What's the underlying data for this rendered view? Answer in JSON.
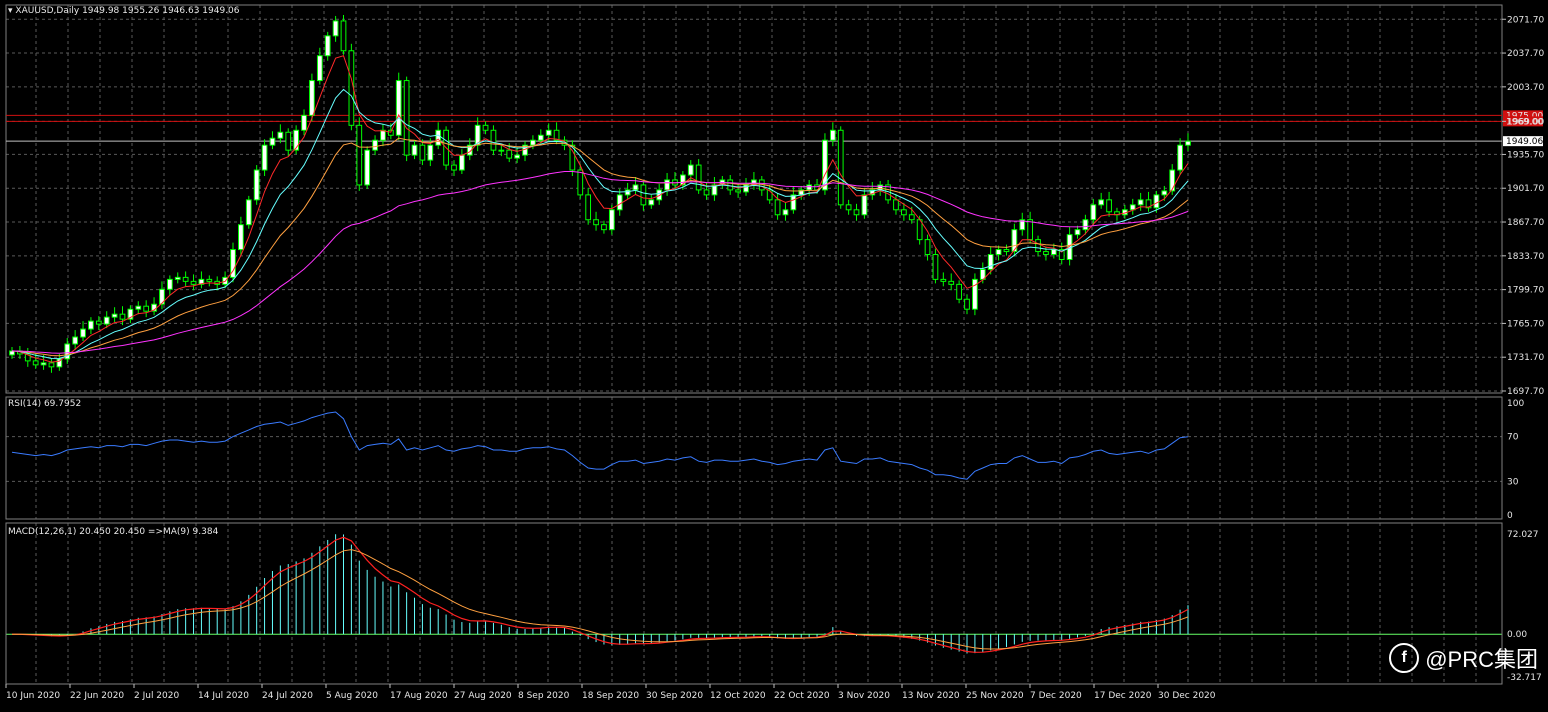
{
  "window": {
    "symbol_caption": "XAUUSD,Daily",
    "ohlc": "1949.98 1955.26 1946.63 1949.06"
  },
  "colors": {
    "bg": "#000000",
    "grid": "#5a5a5a",
    "bull": "#00ff00",
    "bull_fill": "#ffffff",
    "bear": "#00ff00",
    "bear_fill": "#000000",
    "ma_fast": "#ff2a2a",
    "ma_mid": "#66ffff",
    "ma_slow": "#ffa040",
    "ma_long": "#ff33ff",
    "rsi": "#3a7bff",
    "macd_hist": "#66ffff",
    "macd_signal": "#ff2020",
    "macd_signal2": "#ffa040",
    "hline": "#d01010",
    "price_line": "#c0c0c0"
  },
  "main_panel": {
    "price_ticks": [
      "2071.70",
      "2037.70",
      "2003.70",
      "1969.00",
      "1935.70",
      "1901.70",
      "1867.70",
      "1833.70",
      "1799.70",
      "1765.70",
      "1731.70",
      "1697.70"
    ],
    "resistance_lines": [
      {
        "label": "1975.00",
        "value": 1975.0
      },
      {
        "label": "1969.00",
        "value": 1969.0
      }
    ],
    "current_price": {
      "label": "1949.06",
      "value": 1949.06
    }
  },
  "rsi_panel": {
    "caption": "RSI(14) 69.7952",
    "ticks": [
      "100",
      "70",
      "30",
      "0"
    ]
  },
  "macd_panel": {
    "caption": "MACD(12,26,1) 20.450 20.450  =>MA(9) 9.384",
    "ticks": [
      "72.027",
      "0.00",
      "-32.717"
    ]
  },
  "x_axis": {
    "labels": [
      "10 Jun 2020",
      "22 Jun 2020",
      "2 Jul 2020",
      "14 Jul 2020",
      "24 Jul 2020",
      "5 Aug 2020",
      "17 Aug 2020",
      "27 Aug 2020",
      "8 Sep 2020",
      "18 Sep 2020",
      "30 Sep 2020",
      "12 Oct 2020",
      "22 Oct 2020",
      "3 Nov 2020",
      "13 Nov 2020",
      "25 Nov 2020",
      "7 Dec 2020",
      "17 Dec 2020",
      "30 Dec 2020"
    ]
  },
  "watermark": {
    "text": "@PRC集团",
    "logo": "f"
  },
  "chart_data": {
    "type": "candlestick",
    "symbol": "XAUUSD",
    "timeframe": "Daily",
    "ylim": [
      1697.7,
      2080
    ],
    "closes": [
      1738,
      1735,
      1728,
      1724,
      1726,
      1722,
      1730,
      1745,
      1752,
      1760,
      1768,
      1765,
      1772,
      1775,
      1770,
      1780,
      1783,
      1778,
      1785,
      1800,
      1810,
      1812,
      1808,
      1805,
      1810,
      1808,
      1805,
      1812,
      1840,
      1865,
      1890,
      1920,
      1945,
      1952,
      1958,
      1940,
      1960,
      1975,
      2010,
      2035,
      2055,
      2070,
      2040,
      1965,
      1905,
      1940,
      1950,
      1960,
      1955,
      2010,
      1935,
      1945,
      1930,
      1945,
      1960,
      1925,
      1920,
      1935,
      1945,
      1965,
      1960,
      1940,
      1940,
      1932,
      1935,
      1945,
      1950,
      1955,
      1960,
      1950,
      1945,
      1920,
      1895,
      1870,
      1865,
      1860,
      1880,
      1895,
      1900,
      1905,
      1885,
      1890,
      1900,
      1910,
      1905,
      1915,
      1925,
      1900,
      1895,
      1905,
      1910,
      1900,
      1898,
      1905,
      1910,
      1900,
      1890,
      1875,
      1880,
      1895,
      1900,
      1905,
      1900,
      1950,
      1960,
      1885,
      1880,
      1875,
      1895,
      1900,
      1905,
      1890,
      1880,
      1875,
      1870,
      1850,
      1835,
      1810,
      1808,
      1805,
      1790,
      1780,
      1810,
      1820,
      1835,
      1840,
      1838,
      1860,
      1870,
      1850,
      1838,
      1835,
      1840,
      1830,
      1855,
      1860,
      1870,
      1885,
      1890,
      1878,
      1875,
      1880,
      1885,
      1890,
      1882,
      1895,
      1899,
      1920,
      1945,
      1949.06
    ],
    "rsi": [
      56,
      55,
      54,
      53,
      54,
      53,
      55,
      58,
      59,
      60,
      61,
      60,
      62,
      62,
      61,
      63,
      63,
      62,
      64,
      66,
      67,
      67,
      66,
      65,
      66,
      65,
      65,
      66,
      70,
      73,
      76,
      79,
      81,
      82,
      83,
      80,
      82,
      84,
      87,
      89,
      91,
      92,
      86,
      70,
      58,
      62,
      63,
      64,
      63,
      68,
      58,
      60,
      58,
      60,
      62,
      58,
      57,
      59,
      60,
      62,
      61,
      58,
      58,
      57,
      57,
      59,
      60,
      60,
      61,
      59,
      58,
      53,
      47,
      42,
      41,
      41,
      45,
      48,
      48,
      49,
      46,
      47,
      48,
      50,
      49,
      51,
      52,
      48,
      47,
      49,
      49,
      48,
      48,
      49,
      50,
      48,
      47,
      45,
      46,
      48,
      49,
      50,
      49,
      58,
      60,
      48,
      47,
      46,
      50,
      50,
      51,
      48,
      47,
      46,
      45,
      42,
      40,
      36,
      36,
      35,
      33,
      32,
      39,
      42,
      45,
      46,
      46,
      51,
      53,
      50,
      47,
      47,
      48,
      46,
      51,
      52,
      54,
      57,
      58,
      55,
      54,
      55,
      56,
      57,
      55,
      58,
      59,
      64,
      69,
      69.8
    ],
    "macd_ylim": [
      -32.717,
      72.027
    ],
    "xlabel": "",
    "ylabel": ""
  }
}
